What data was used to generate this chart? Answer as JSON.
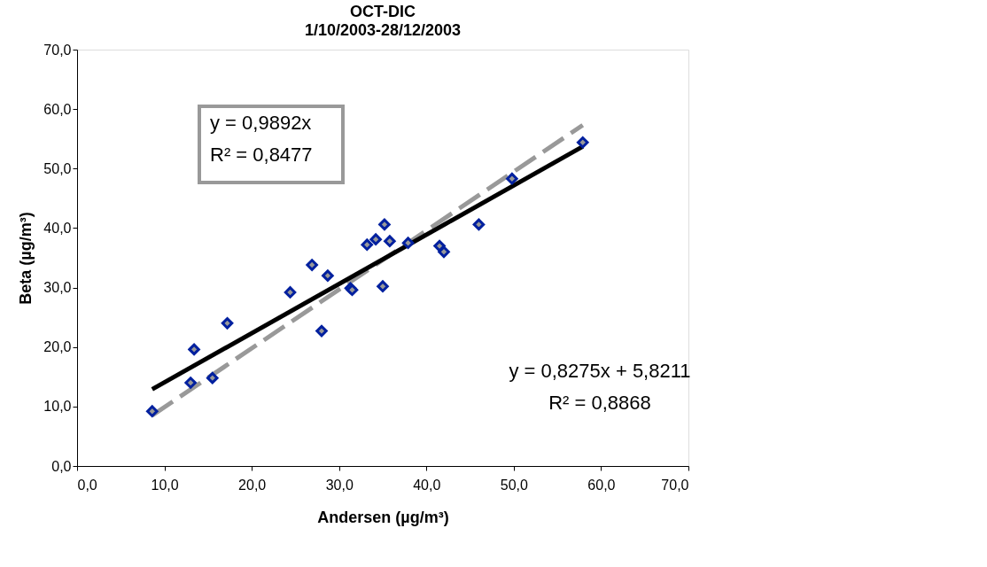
{
  "chart_data": {
    "type": "scatter",
    "title": "OCT-DIC",
    "subtitle": "1/10/2003-28/12/2003",
    "xlabel": "Andersen (µg/m³)",
    "ylabel": "Beta (µg/m³)",
    "xlim": [
      0,
      70
    ],
    "ylim": [
      0,
      70
    ],
    "xticks": [
      {
        "value": 0,
        "label": "0,0"
      },
      {
        "value": 10,
        "label": "10,0"
      },
      {
        "value": 20,
        "label": "20,0"
      },
      {
        "value": 30,
        "label": "30,0"
      },
      {
        "value": 40,
        "label": "40,0"
      },
      {
        "value": 50,
        "label": "50,0"
      },
      {
        "value": 60,
        "label": "60,0"
      },
      {
        "value": 70,
        "label": "70,0"
      }
    ],
    "yticks": [
      {
        "value": 0,
        "label": "0,0"
      },
      {
        "value": 10,
        "label": "10,0"
      },
      {
        "value": 20,
        "label": "20,0"
      },
      {
        "value": 30,
        "label": "30,0"
      },
      {
        "value": 40,
        "label": "40,0"
      },
      {
        "value": 50,
        "label": "50,0"
      },
      {
        "value": 60,
        "label": "60,0"
      },
      {
        "value": 70,
        "label": "70,0"
      }
    ],
    "grid": false,
    "series": [
      {
        "type": "scatter",
        "marker": "diamond",
        "color": "#00209f",
        "x": [
          8.6,
          13.0,
          13.4,
          15.5,
          17.2,
          24.4,
          26.9,
          28.0,
          28.7,
          31.3,
          31.5,
          33.2,
          34.2,
          35.0,
          35.2,
          35.8,
          37.9,
          41.5,
          42.0,
          46.0,
          49.8,
          57.9
        ],
        "values": [
          9.2,
          14.0,
          19.6,
          14.8,
          24.0,
          29.2,
          33.8,
          22.7,
          32.0,
          29.9,
          29.6,
          37.2,
          38.1,
          30.2,
          40.6,
          37.8,
          37.5,
          37.0,
          36.0,
          40.6,
          48.3,
          54.4
        ]
      },
      {
        "type": "line",
        "color": "#999999",
        "line_style": "dashed",
        "x": [
          8.6,
          57.9
        ],
        "values": [
          8.5,
          57.3
        ]
      },
      {
        "type": "line",
        "color": "#000000",
        "line_style": "solid",
        "x": [
          8.6,
          57.9
        ],
        "values": [
          12.9,
          53.7
        ]
      }
    ],
    "annotations": [
      "y = 0,9892x\nR² = 0,8477",
      "y = 0,8275x + 5,8211\nR² = 0,8868"
    ]
  }
}
